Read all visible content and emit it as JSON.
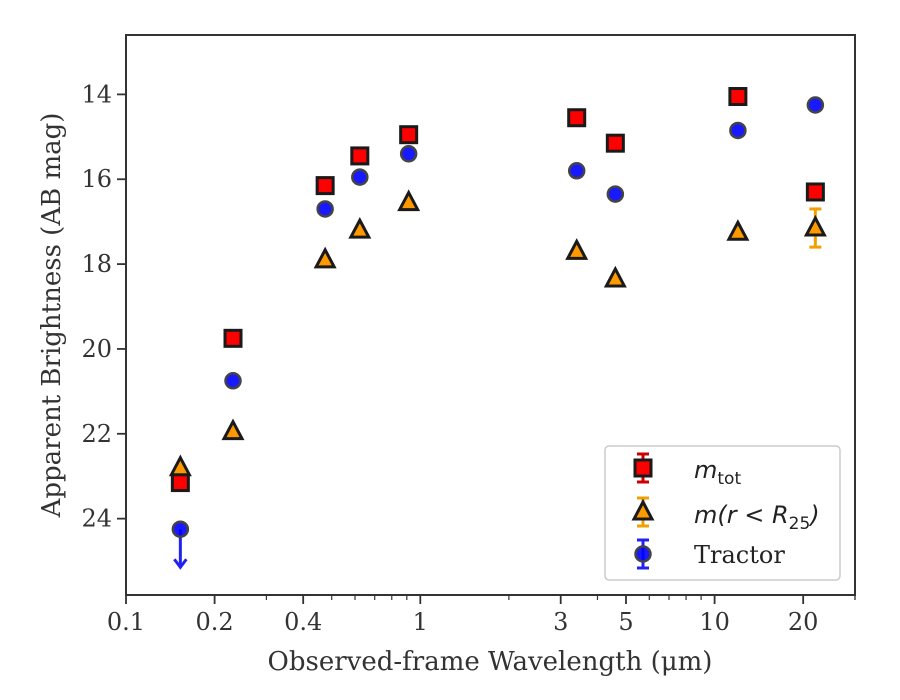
{
  "chart_data": {
    "type": "scatter",
    "title": "",
    "xlabel": "Observed-frame Wavelength (μm)",
    "ylabel": "Apparent Brightness (AB mag)",
    "xscale": "log",
    "xlim": [
      0.1,
      30
    ],
    "ylim": [
      25.8,
      12.6
    ],
    "y_inverted": true,
    "x_ticks": [
      0.1,
      0.2,
      0.4,
      1,
      3,
      5,
      10,
      20
    ],
    "x_tick_labels": [
      "0.1",
      "0.2",
      "0.4",
      "1",
      "3",
      "5",
      "10",
      "20"
    ],
    "y_ticks": [
      14,
      16,
      18,
      20,
      22,
      24
    ],
    "y_tick_labels": [
      "14",
      "16",
      "18",
      "20",
      "22",
      "24"
    ],
    "grid": false,
    "legend_position": "bottom-right",
    "legend_entries": [
      "m_tot",
      "m(r < R25)",
      "Tractor"
    ],
    "series": [
      {
        "name": "m_tot",
        "marker": "square",
        "color": "#ff0000",
        "edge_color": "#1a1a1a",
        "error_color": "#cc0000",
        "x": [
          0.153,
          0.231,
          0.475,
          0.623,
          0.913,
          3.4,
          4.6,
          12.0,
          22.0
        ],
        "y": [
          23.15,
          19.75,
          16.15,
          15.45,
          14.95,
          14.55,
          15.15,
          14.05,
          16.3
        ],
        "yerr": [
          0.05,
          0.05,
          0.05,
          0.05,
          0.05,
          0.05,
          0.05,
          0.05,
          0.05
        ]
      },
      {
        "name": "m(r < R25)",
        "marker": "triangle",
        "color": "#ff9900",
        "edge_color": "#1a1a1a",
        "error_color": "#f0a000",
        "x": [
          0.153,
          0.231,
          0.475,
          0.623,
          0.913,
          3.4,
          4.6,
          12.0,
          22.0
        ],
        "y": [
          22.8,
          21.95,
          17.9,
          17.2,
          16.55,
          17.7,
          18.35,
          17.25,
          17.15
        ],
        "yerr": [
          0.05,
          0.05,
          0.05,
          0.05,
          0.05,
          0.05,
          0.05,
          0.05,
          0.45
        ]
      },
      {
        "name": "Tractor",
        "marker": "circle",
        "color": "#0000ff",
        "edge_color": "#444444",
        "error_color": "#2222ee",
        "x": [
          0.153,
          0.231,
          0.475,
          0.623,
          0.913,
          3.4,
          4.6,
          12.0,
          22.0
        ],
        "y": [
          24.25,
          20.75,
          16.7,
          15.95,
          15.4,
          15.8,
          16.35,
          14.85,
          14.25
        ],
        "yerr": [
          0.05,
          0.05,
          0.05,
          0.05,
          0.05,
          0.05,
          0.05,
          0.05,
          0.05
        ],
        "upper_limit_x": [
          0.153
        ]
      }
    ]
  }
}
